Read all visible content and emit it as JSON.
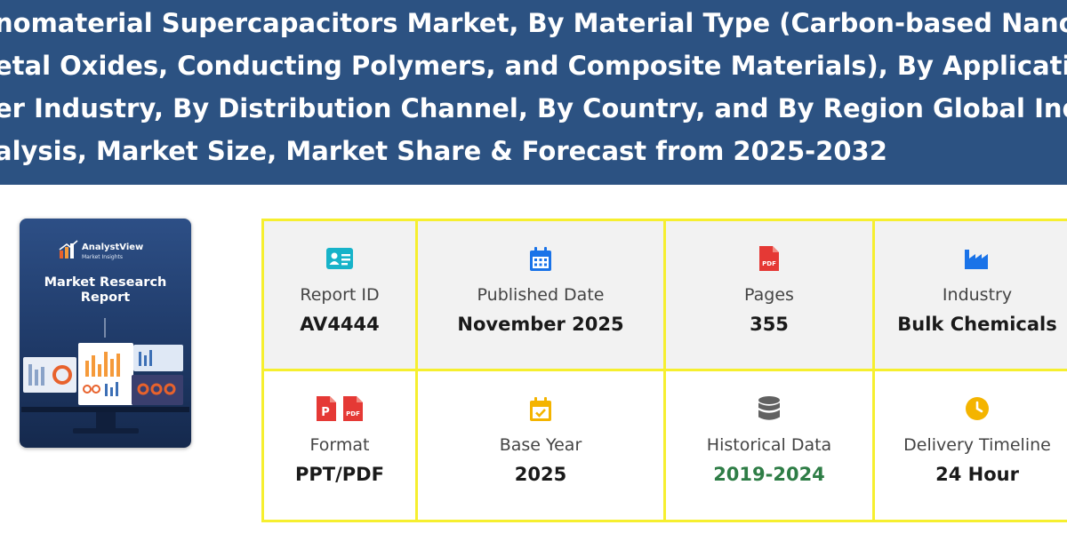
{
  "banner": {
    "title_lines": [
      "nomaterial Supercapacitors Market, By Material Type (Carbon-based Nanomaterial",
      "etal Oxides, Conducting Polymers, and Composite Materials), By Application, By End",
      "er Industry, By Distribution Channel, By Country, and By Region Global Industry",
      "alysis, Market Size, Market Share & Forecast from 2025-2032"
    ]
  },
  "cover": {
    "brand": "AnalystView",
    "brand_sub": "Market Insights",
    "title_line1": "Market Research",
    "title_line2": "Report"
  },
  "info": {
    "report_id": {
      "label": "Report ID",
      "value": "AV4444",
      "icon": "id-card-icon"
    },
    "published_date": {
      "label": "Published Date",
      "value": "November 2025",
      "icon": "calendar-icon"
    },
    "pages": {
      "label": "Pages",
      "value": "355",
      "icon": "pdf-file-icon"
    },
    "industry": {
      "label": "Industry",
      "value": "Bulk Chemicals",
      "icon": "factory-icon"
    },
    "format": {
      "label": "Format",
      "value": "PPT/PDF",
      "icon": "ppt-pdf-icons"
    },
    "base_year": {
      "label": "Base Year",
      "value": "2025",
      "icon": "calendar-check-icon"
    },
    "historical_data": {
      "label": "Historical Data",
      "value": "2019-2024",
      "icon": "database-icon"
    },
    "delivery_timeline": {
      "label": "Delivery Timeline",
      "value": "24 Hour",
      "icon": "clock-icon"
    }
  },
  "colors": {
    "banner": "#2c5282",
    "grid_border": "#f6ef2f",
    "accent_blue": "#1a73e8",
    "teal": "#17b3c9",
    "red": "#e53935",
    "amber": "#f4b400",
    "green_value": "#2e7d46"
  },
  "labels": {
    "pdf_badge": "PDF",
    "ppt_badge": "P"
  }
}
